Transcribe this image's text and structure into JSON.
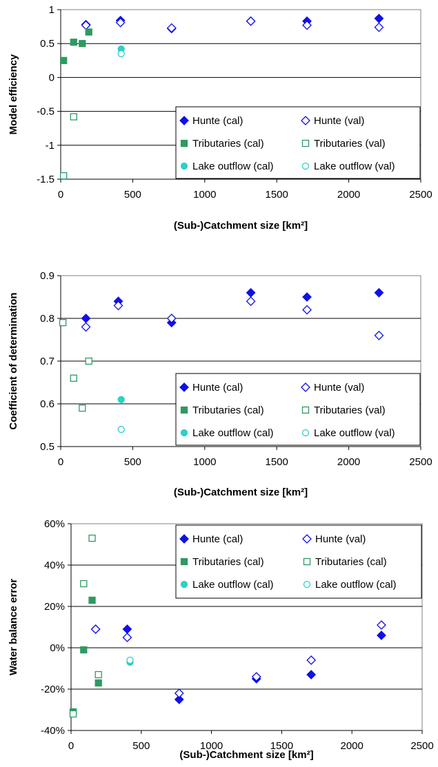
{
  "colors": {
    "hunte": "#1010e6",
    "tributaries": "#2e9a63",
    "lake": "#2fcfc8"
  },
  "chart_data": [
    {
      "type": "scatter",
      "xlabel": "(Sub-)Catchment size [km²]",
      "ylabel": "Model efficiency",
      "xlim": [
        0,
        2500
      ],
      "ylim": [
        -1.5,
        1
      ],
      "x_ticks": [
        "0",
        "500",
        "1000",
        "1500",
        "2000",
        "2500"
      ],
      "y_ticks": [
        "1",
        "0.5",
        "0",
        "-0.5",
        "-1",
        "-1.5"
      ],
      "grid": "horizontal",
      "legend_position": "lower-right",
      "series": [
        {
          "name": "Hunte (cal)",
          "marker": "diamond",
          "filled": true,
          "color_key": "hunte",
          "points": [
            [
              175,
              0.78
            ],
            [
              415,
              0.84
            ],
            [
              770,
              0.72
            ],
            [
              1320,
              0.83
            ],
            [
              1710,
              0.83
            ],
            [
              2210,
              0.87
            ]
          ]
        },
        {
          "name": "Hunte (val)",
          "marker": "diamond",
          "filled": false,
          "color_key": "hunte",
          "points": [
            [
              175,
              0.77
            ],
            [
              415,
              0.81
            ],
            [
              770,
              0.73
            ],
            [
              1320,
              0.83
            ],
            [
              1710,
              0.77
            ],
            [
              2210,
              0.74
            ]
          ]
        },
        {
          "name": "Tributaries (cal)",
          "marker": "square",
          "filled": true,
          "color_key": "tributaries",
          "points": [
            [
              20,
              0.25
            ],
            [
              90,
              0.52
            ],
            [
              150,
              0.5
            ],
            [
              195,
              0.67
            ]
          ]
        },
        {
          "name": "Tributaries (val)",
          "marker": "square",
          "filled": false,
          "color_key": "tributaries",
          "points": [
            [
              20,
              -1.45
            ],
            [
              90,
              -0.58
            ]
          ]
        },
        {
          "name": "Lake outflow (cal)",
          "marker": "circle",
          "filled": true,
          "color_key": "lake",
          "points": [
            [
              420,
              0.42
            ]
          ]
        },
        {
          "name": "Lake outflow (val)",
          "marker": "circle",
          "filled": false,
          "color_key": "lake",
          "points": [
            [
              420,
              0.35
            ]
          ]
        }
      ]
    },
    {
      "type": "scatter",
      "xlabel": "(Sub-)Catchment size [km²]",
      "ylabel": "Coefficient of determination",
      "xlim": [
        0,
        2500
      ],
      "ylim": [
        0.5,
        0.9
      ],
      "x_ticks": [
        "0",
        "500",
        "1000",
        "1500",
        "2000",
        "2500"
      ],
      "y_ticks": [
        "0.9",
        "0.8",
        "0.7",
        "0.6",
        "0.5"
      ],
      "grid": "horizontal",
      "legend_position": "lower-right",
      "series": [
        {
          "name": "Hunte (cal)",
          "marker": "diamond",
          "filled": true,
          "color_key": "hunte",
          "points": [
            [
              175,
              0.8
            ],
            [
              400,
              0.84
            ],
            [
              770,
              0.79
            ],
            [
              1320,
              0.86
            ],
            [
              1710,
              0.85
            ],
            [
              2210,
              0.86
            ]
          ]
        },
        {
          "name": "Hunte (val)",
          "marker": "diamond",
          "filled": false,
          "color_key": "hunte",
          "points": [
            [
              175,
              0.78
            ],
            [
              400,
              0.83
            ],
            [
              770,
              0.8
            ],
            [
              1320,
              0.84
            ],
            [
              1710,
              0.82
            ],
            [
              2210,
              0.76
            ]
          ]
        },
        {
          "name": "Tributaries (cal)",
          "marker": "square",
          "filled": true,
          "color_key": "tributaries",
          "points": []
        },
        {
          "name": "Tributaries (val)",
          "marker": "square",
          "filled": false,
          "color_key": "tributaries",
          "points": [
            [
              15,
              0.79
            ],
            [
              90,
              0.66
            ],
            [
              150,
              0.59
            ],
            [
              195,
              0.7
            ]
          ]
        },
        {
          "name": "Lake outflow (cal)",
          "marker": "circle",
          "filled": true,
          "color_key": "lake",
          "points": [
            [
              420,
              0.61
            ]
          ]
        },
        {
          "name": "Lake outflow (val)",
          "marker": "circle",
          "filled": false,
          "color_key": "lake",
          "points": [
            [
              420,
              0.54
            ]
          ]
        }
      ]
    },
    {
      "type": "scatter",
      "xlabel": "(Sub-)Catchment size [km²]",
      "ylabel": "Water balance error",
      "xlim": [
        0,
        2500
      ],
      "ylim": [
        -40,
        60
      ],
      "x_ticks": [
        "0",
        "500",
        "1000",
        "1500",
        "2000",
        "2500"
      ],
      "y_ticks": [
        "60%",
        "40%",
        "20%",
        "0%",
        "-20%",
        "-40%"
      ],
      "grid": "horizontal",
      "legend_position": "top-right",
      "series": [
        {
          "name": "Hunte (cal)",
          "marker": "diamond",
          "filled": true,
          "color_key": "hunte",
          "points": [
            [
              175,
              9
            ],
            [
              400,
              9
            ],
            [
              770,
              -25
            ],
            [
              1320,
              -15
            ],
            [
              1710,
              -13
            ],
            [
              2210,
              6
            ]
          ]
        },
        {
          "name": "Hunte (val)",
          "marker": "diamond",
          "filled": false,
          "color_key": "hunte",
          "points": [
            [
              175,
              9
            ],
            [
              400,
              5
            ],
            [
              770,
              -22
            ],
            [
              1320,
              -14
            ],
            [
              1710,
              -6
            ],
            [
              2210,
              11
            ]
          ]
        },
        {
          "name": "Tributaries (cal)",
          "marker": "square",
          "filled": true,
          "color_key": "tributaries",
          "points": [
            [
              15,
              -31
            ],
            [
              90,
              -1
            ],
            [
              150,
              23
            ],
            [
              195,
              -17
            ]
          ]
        },
        {
          "name": "Tributaries (cal)",
          "marker": "square",
          "filled": false,
          "color_key": "tributaries",
          "points": [
            [
              15,
              -32
            ],
            [
              90,
              31
            ],
            [
              150,
              53
            ],
            [
              195,
              -13
            ]
          ]
        },
        {
          "name": "Lake outflow (cal)",
          "marker": "circle",
          "filled": true,
          "color_key": "lake",
          "points": [
            [
              420,
              -7
            ]
          ]
        },
        {
          "name": "Lake outflow (cal)",
          "marker": "circle",
          "filled": false,
          "color_key": "lake",
          "points": [
            [
              420,
              -6
            ]
          ]
        }
      ]
    }
  ]
}
